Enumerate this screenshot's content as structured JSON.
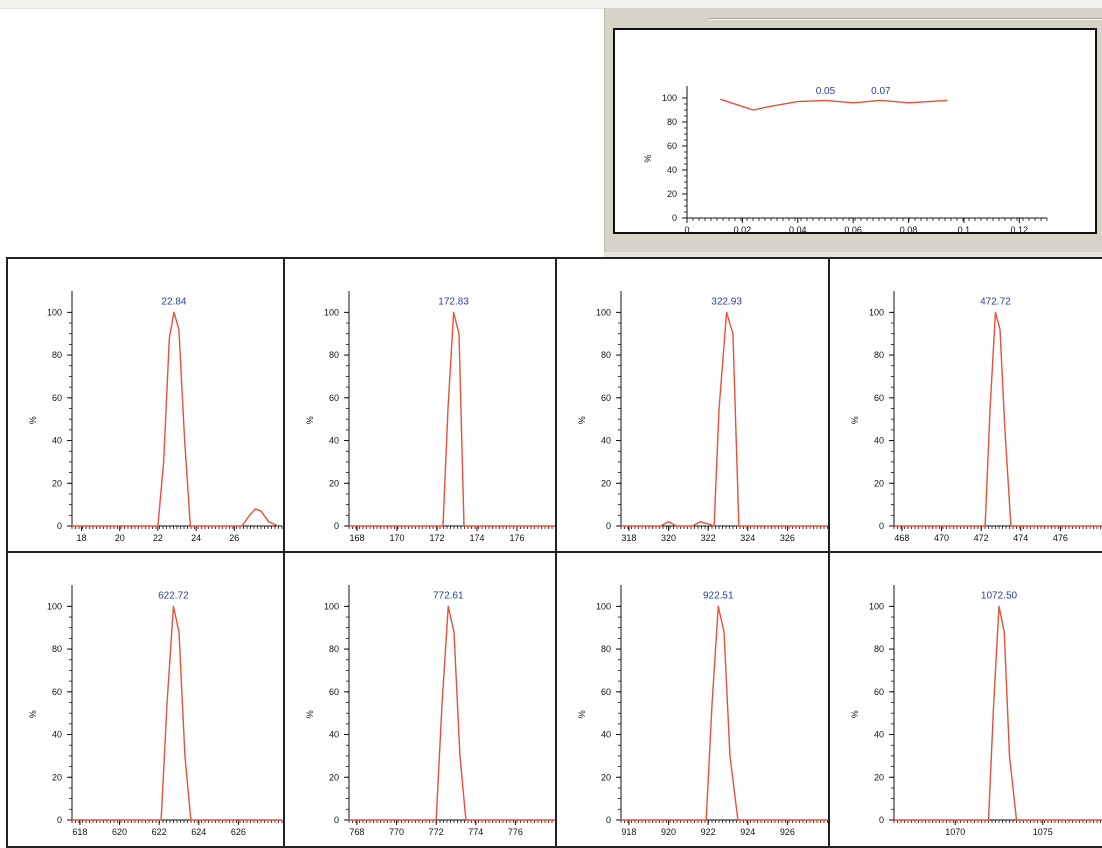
{
  "chart_data": [
    {
      "type": "line",
      "title": "",
      "ylabel": "%",
      "xlim": [
        0,
        0.13
      ],
      "ylim": [
        0,
        110
      ],
      "x_ticks": [
        "0",
        "0.02",
        "0.04",
        "0.06",
        "0.08",
        "0.1",
        "0.12"
      ],
      "y_ticks": [
        "0",
        "20",
        "40",
        "60",
        "80",
        "100"
      ],
      "annotations": [
        "0.05",
        "0.07"
      ],
      "annotation_x": [
        0.05,
        0.07
      ],
      "color": "#e8503a",
      "x": [
        0.012,
        0.02,
        0.024,
        0.03,
        0.04,
        0.05,
        0.06,
        0.07,
        0.08,
        0.094
      ],
      "y": [
        99,
        93,
        90,
        93,
        97,
        98,
        96,
        98,
        96,
        98
      ]
    },
    {
      "type": "line",
      "ylabel": "%",
      "xlim": [
        17.5,
        28.5
      ],
      "ylim": [
        0,
        110
      ],
      "x_ticks": [
        "18",
        "20",
        "22",
        "24",
        "26"
      ],
      "y_ticks": [
        "0",
        "20",
        "40",
        "60",
        "80",
        "100"
      ],
      "peak_label": "22.84",
      "peak_x": 22.84,
      "color": "#e8503a",
      "x": [
        17.5,
        22.0,
        22.3,
        22.6,
        22.84,
        23.1,
        23.4,
        23.7,
        26.4,
        26.8,
        27.1,
        27.4,
        27.8,
        28.3
      ],
      "y": [
        0,
        0,
        30,
        88,
        100,
        92,
        40,
        0,
        0,
        5,
        8,
        7,
        2,
        0
      ]
    },
    {
      "type": "line",
      "ylabel": "%",
      "xlim": [
        167.6,
        178.1
      ],
      "ylim": [
        0,
        110
      ],
      "x_ticks": [
        "168",
        "170",
        "172",
        "174",
        "176"
      ],
      "y_ticks": [
        "0",
        "20",
        "40",
        "60",
        "80",
        "100"
      ],
      "peak_label": "172.83",
      "peak_x": 172.83,
      "color": "#e8503a",
      "x": [
        167.6,
        172.3,
        172.55,
        172.83,
        173.1,
        173.35,
        178.1
      ],
      "y": [
        0,
        0,
        55,
        100,
        90,
        0,
        0
      ]
    },
    {
      "type": "line",
      "ylabel": "%",
      "xlim": [
        317.6,
        328.2
      ],
      "ylim": [
        0,
        110
      ],
      "x_ticks": [
        "318",
        "320",
        "322",
        "324",
        "326"
      ],
      "y_ticks": [
        "0",
        "20",
        "40",
        "60",
        "80",
        "100"
      ],
      "peak_label": "322.93",
      "peak_x": 322.93,
      "color": "#e8503a",
      "x": [
        317.6,
        319.6,
        320.0,
        320.4,
        321.2,
        321.6,
        322.0,
        322.3,
        322.55,
        322.93,
        323.25,
        323.55,
        328.2
      ],
      "y": [
        0,
        0,
        2,
        0,
        0,
        2,
        1,
        0,
        55,
        100,
        90,
        0,
        0
      ]
    },
    {
      "type": "line",
      "ylabel": "%",
      "xlim": [
        467.6,
        478.2
      ],
      "ylim": [
        0,
        110
      ],
      "x_ticks": [
        "468",
        "470",
        "472",
        "474",
        "476"
      ],
      "y_ticks": [
        "0",
        "20",
        "40",
        "60",
        "80",
        "100"
      ],
      "peak_label": "472.72",
      "peak_x": 472.72,
      "color": "#e8503a",
      "x": [
        467.6,
        472.2,
        472.45,
        472.72,
        472.95,
        473.2,
        473.5,
        478.2
      ],
      "y": [
        0,
        0,
        55,
        100,
        92,
        45,
        0,
        0
      ]
    },
    {
      "type": "line",
      "ylabel": "%",
      "xlim": [
        617.6,
        628.2
      ],
      "ylim": [
        0,
        110
      ],
      "x_ticks": [
        "618",
        "620",
        "622",
        "624",
        "626"
      ],
      "y_ticks": [
        "0",
        "20",
        "40",
        "60",
        "80",
        "100"
      ],
      "peak_label": "622.72",
      "peak_x": 622.72,
      "color": "#e8503a",
      "x": [
        617.6,
        622.1,
        622.4,
        622.72,
        623.0,
        623.3,
        623.6,
        628.2
      ],
      "y": [
        0,
        0,
        55,
        100,
        88,
        30,
        0,
        0
      ]
    },
    {
      "type": "line",
      "ylabel": "%",
      "xlim": [
        767.6,
        778.2
      ],
      "ylim": [
        0,
        110
      ],
      "x_ticks": [
        "768",
        "770",
        "772",
        "774",
        "776"
      ],
      "y_ticks": [
        "0",
        "20",
        "40",
        "60",
        "80",
        "100"
      ],
      "peak_label": "772.61",
      "peak_x": 772.61,
      "color": "#e8503a",
      "x": [
        767.6,
        772.0,
        772.3,
        772.61,
        772.9,
        773.2,
        773.5,
        778.2
      ],
      "y": [
        0,
        0,
        55,
        100,
        88,
        30,
        0,
        0
      ]
    },
    {
      "type": "line",
      "ylabel": "%",
      "xlim": [
        917.6,
        928.2
      ],
      "ylim": [
        0,
        110
      ],
      "x_ticks": [
        "918",
        "920",
        "922",
        "924",
        "926"
      ],
      "y_ticks": [
        "0",
        "20",
        "40",
        "60",
        "80",
        "100"
      ],
      "peak_label": "922.51",
      "peak_x": 922.51,
      "color": "#e8503a",
      "x": [
        917.6,
        921.9,
        922.2,
        922.51,
        922.8,
        923.1,
        923.5,
        928.2
      ],
      "y": [
        0,
        0,
        55,
        100,
        88,
        30,
        0,
        0
      ]
    },
    {
      "type": "line",
      "ylabel": "%",
      "xlim": [
        1066.5,
        1078.5
      ],
      "ylim": [
        0,
        110
      ],
      "x_ticks": [
        "1070",
        "1075"
      ],
      "y_ticks": [
        "0",
        "20",
        "40",
        "60",
        "80",
        "100"
      ],
      "peak_label": "1072.50",
      "peak_x": 1072.5,
      "color": "#e8503a",
      "x": [
        1066.5,
        1071.9,
        1072.2,
        1072.5,
        1072.8,
        1073.1,
        1073.5,
        1078.5
      ],
      "y": [
        0,
        0,
        55,
        100,
        88,
        30,
        0,
        0
      ]
    }
  ]
}
